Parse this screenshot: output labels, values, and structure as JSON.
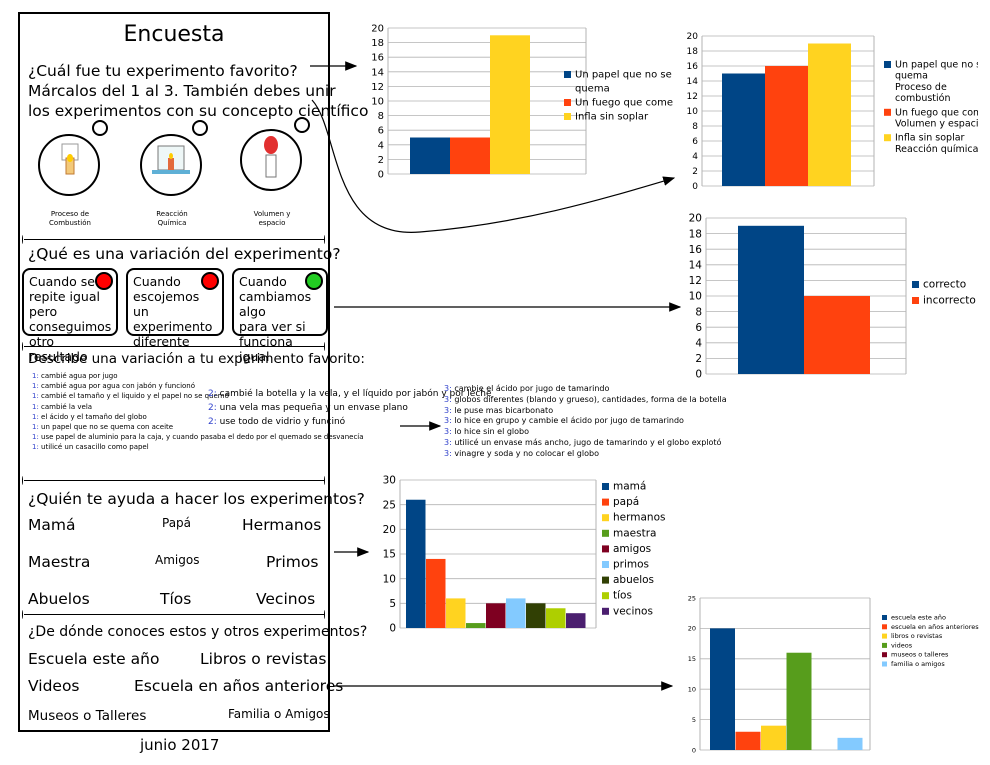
{
  "poster": {
    "title": "Encuesta",
    "q1_lines": [
      "¿Cuál fue tu experimento favorito?",
      "Márcalos del 1 al 3. También debes unir",
      "los experimentos con su concepto científico"
    ],
    "experiments": [
      {
        "label1": "Proceso de",
        "label2": "Combustión"
      },
      {
        "label1": "Reacción",
        "label2": "Química"
      },
      {
        "label1": "Volumen y",
        "label2": "espacio"
      }
    ],
    "q2": "¿Qué es una variación del experimento?",
    "variations": [
      {
        "text": [
          "Cuando se",
          "repite igual pero",
          "conseguimos",
          "otro resultado"
        ],
        "dot_color": "#ff0000"
      },
      {
        "text": [
          "Cuando",
          "escojemos",
          "un experimento",
          "diferente"
        ],
        "dot_color": "#ff0000"
      },
      {
        "text": [
          "Cuando",
          "cambiamos algo",
          "para ver si",
          "funciona igual"
        ],
        "dot_color": "#22cc22"
      }
    ],
    "q3": "Describe una variación a tu  experimento favorito:",
    "answers1": [
      {
        "n": "1:",
        "t": " cambié agua por jugo"
      },
      {
        "n": "1:",
        "t": " cambié agua por agua con jabón y funcionó"
      },
      {
        "n": "1:",
        "t": " cambié el tamaño y el liquido y el papel no se quemó"
      },
      {
        "n": "1:",
        "t": " cambié la vela"
      },
      {
        "n": "1:",
        "t": " el ácido y el tamaño del globo"
      },
      {
        "n": "1:",
        "t": " un papel que no se quema con aceite"
      },
      {
        "n": "1:",
        "t": " use papel de aluminio para la caja, y cuando pasaba el dedo por el quemado se desvanecía"
      },
      {
        "n": "1:",
        "t": " utilicé un casacillo como papel"
      }
    ],
    "q4": "¿Quién te ayuda a hacer los experimentos?",
    "helpers": [
      "Mamá",
      "Papá",
      "Hermanos",
      "Maestra",
      "Amigos",
      "Primos",
      "Abuelos",
      "Tíos",
      "Vecinos"
    ],
    "q5": "¿De dónde conoces estos y otros experimentos?",
    "sources": [
      "Escuela este año",
      "Libros o revistas",
      "Videos",
      "Escuela en años anteriores",
      "Museos o Talleres",
      "Familia o Amigos"
    ]
  },
  "footer": "junio 2017",
  "answers2": [
    {
      "n": "2:",
      "t": " cambié la botella y la vela, y el líquido por jabón y por leche"
    },
    {
      "n": "2:",
      "t": " una vela mas pequeña y un envase plano"
    },
    {
      "n": "2:",
      "t": " use todo de vidrio y funcinó"
    }
  ],
  "answers3": [
    {
      "n": "3:",
      "t": " cambie el ácido por jugo de tamarindo"
    },
    {
      "n": "3:",
      "t": " globos diferentes (blando y grueso), cantidades, forma de la botella"
    },
    {
      "n": "3:",
      "t": " le puse mas bicarbonato"
    },
    {
      "n": "3:",
      "t": " lo hice en grupo y cambie el ácido por jugo de tamarindo"
    },
    {
      "n": "3:",
      "t": " lo hice sin el globo"
    },
    {
      "n": "3:",
      "t": " utilicé un envase más ancho, jugo de tamarindo y el globo explotó"
    },
    {
      "n": "3:",
      "t": " vinagre y soda y no colocar el globo"
    }
  ],
  "colors": {
    "navy": "#004586",
    "orange": "#ff420e",
    "yellow": "#ffd320",
    "green": "#579d1c",
    "maroon": "#7e0021",
    "lightblue": "#83caff",
    "darkolive": "#314004",
    "lime": "#aecf00",
    "purple": "#4b1f6f"
  },
  "chart_data": [
    {
      "type": "bar",
      "title": "",
      "categories": [
        ""
      ],
      "series": [
        {
          "name": "Un papel que no se quema",
          "values": [
            5
          ]
        },
        {
          "name": "Un fuego que come",
          "values": [
            5
          ]
        },
        {
          "name": "Infla sin soplar",
          "values": [
            19
          ]
        }
      ],
      "ylim": [
        0,
        20
      ],
      "ytick_step": 2,
      "legend": "right"
    },
    {
      "type": "bar",
      "title": "",
      "categories": [
        ""
      ],
      "series": [
        {
          "name": "Un papel que no se quema Proceso de combustión",
          "legend_lines": [
            "Un papel que no se",
            "quema",
            "Proceso de",
            "combustión"
          ],
          "values": [
            15
          ]
        },
        {
          "name": "Un fuego que come Volumen y espacio",
          "legend_lines": [
            "Un fuego que come",
            "Volumen y espacio"
          ],
          "values": [
            16
          ]
        },
        {
          "name": "Infla sin soplar Reacción química",
          "legend_lines": [
            "Infla sin soplar",
            "Reacción química"
          ],
          "values": [
            19
          ]
        }
      ],
      "ylim": [
        0,
        20
      ],
      "ytick_step": 2,
      "legend": "right"
    },
    {
      "type": "bar",
      "title": "",
      "categories": [
        ""
      ],
      "series": [
        {
          "name": "correcto",
          "values": [
            19
          ]
        },
        {
          "name": "incorrecto",
          "values": [
            10
          ]
        }
      ],
      "ylim": [
        0,
        20
      ],
      "ytick_step": 2,
      "legend": "right"
    },
    {
      "type": "bar",
      "title": "",
      "categories": [
        ""
      ],
      "series": [
        {
          "name": "mamá",
          "values": [
            26
          ]
        },
        {
          "name": "papá",
          "values": [
            14
          ]
        },
        {
          "name": "hermanos",
          "values": [
            6
          ]
        },
        {
          "name": "maestra",
          "values": [
            1
          ]
        },
        {
          "name": "amigos",
          "values": [
            5
          ]
        },
        {
          "name": "primos",
          "values": [
            6
          ]
        },
        {
          "name": "abuelos",
          "values": [
            5
          ]
        },
        {
          "name": "tíos",
          "values": [
            4
          ]
        },
        {
          "name": "vecinos",
          "values": [
            3
          ]
        }
      ],
      "ylim": [
        0,
        30
      ],
      "ytick_step": 5,
      "legend": "right"
    },
    {
      "type": "bar",
      "title": "",
      "categories": [
        ""
      ],
      "series": [
        {
          "name": "escuela este año",
          "values": [
            20
          ]
        },
        {
          "name": "escuela en años anteriores",
          "values": [
            3
          ]
        },
        {
          "name": "libros o revistas",
          "values": [
            4
          ]
        },
        {
          "name": "videos",
          "values": [
            16
          ]
        },
        {
          "name": "museos o talleres",
          "values": [
            0
          ]
        },
        {
          "name": "familia o amigos",
          "values": [
            2
          ]
        }
      ],
      "ylim": [
        0,
        25
      ],
      "ytick_step": 5,
      "legend": "right"
    }
  ]
}
